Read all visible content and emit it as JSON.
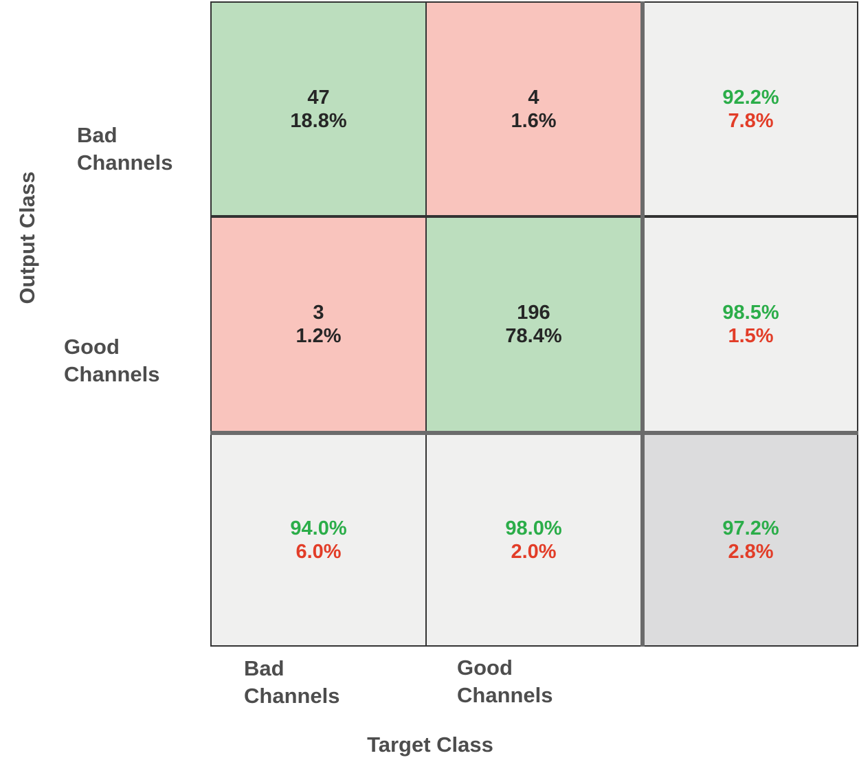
{
  "axes": {
    "y_title": "Output Class",
    "x_title": "Target Class",
    "y_ticks": [
      "Bad\nChannels",
      "Good\nChannels"
    ],
    "x_ticks": [
      "Bad\nChannels",
      "Good\nChannels"
    ]
  },
  "cells": {
    "row1": {
      "col1": {
        "count": "47",
        "percent": "18.8%"
      },
      "col2": {
        "count": "4",
        "percent": "1.6%"
      },
      "summary": {
        "positive": "92.2%",
        "negative": "7.8%"
      }
    },
    "row2": {
      "col1": {
        "count": "3",
        "percent": "1.2%"
      },
      "col2": {
        "count": "196",
        "percent": "78.4%"
      },
      "summary": {
        "positive": "98.5%",
        "negative": "1.5%"
      }
    },
    "row3": {
      "col1": {
        "positive": "94.0%",
        "negative": "6.0%"
      },
      "col2": {
        "positive": "98.0%",
        "negative": "2.0%"
      },
      "summary": {
        "positive": "97.2%",
        "negative": "2.8%"
      }
    }
  },
  "colors": {
    "correct_bg": "#bcdebe",
    "incorrect_bg": "#f9c4bd",
    "summary_bg": "#f0f0ef",
    "overall_bg": "#dcdcdd",
    "positive_text": "#2bad49",
    "negative_text": "#e23d28",
    "count_text": "#262626",
    "label_text": "#4d4d4d",
    "thin_line": "#333333",
    "thick_line": "#6b6b6b"
  },
  "chart_data": {
    "type": "heatmap",
    "subtype": "confusion-matrix",
    "xlabel": "Target Class",
    "ylabel": "Output Class",
    "classes": [
      "Bad Channels",
      "Good Channels"
    ],
    "matrix_counts": [
      [
        47,
        4
      ],
      [
        3,
        196
      ]
    ],
    "matrix_percent_of_total": [
      [
        18.8,
        1.6
      ],
      [
        1.2,
        78.4
      ]
    ],
    "row_summary_percent": [
      [
        92.2,
        7.8
      ],
      [
        98.5,
        1.5
      ]
    ],
    "col_summary_percent": [
      [
        94.0,
        6.0
      ],
      [
        98.0,
        2.0
      ]
    ],
    "overall_accuracy_percent": 97.2,
    "overall_error_percent": 2.8,
    "legend_position": "none",
    "grid": true
  }
}
